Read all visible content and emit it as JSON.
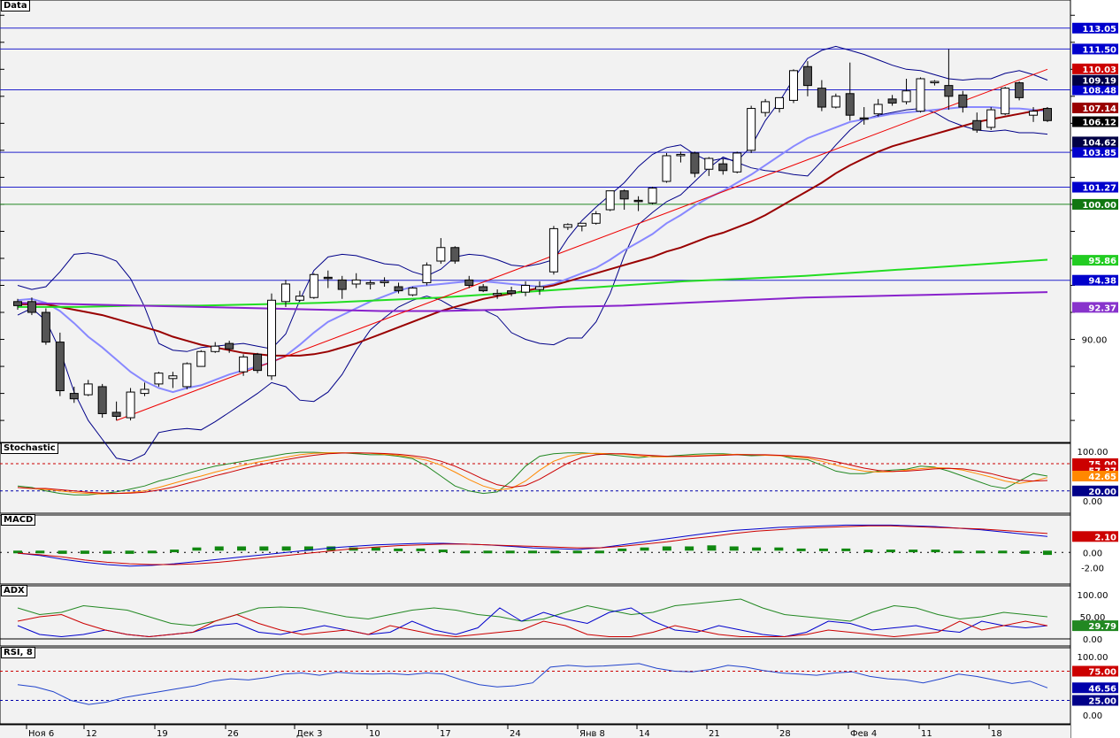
{
  "panels": {
    "price": {
      "title": "Data",
      "tick_labels": [
        "90.00"
      ],
      "hlines": [
        {
          "value": 113.05,
          "label": "113.05",
          "color": "#2222cc"
        },
        {
          "value": 111.5,
          "label": "111.50",
          "color": "#2222cc"
        },
        {
          "value": 108.48,
          "label": "108.48",
          "color": "#2222cc"
        },
        {
          "value": 103.85,
          "label": "103.85",
          "color": "#2222cc"
        },
        {
          "value": 101.27,
          "label": "101.27",
          "color": "#2222cc"
        },
        {
          "value": 100.0,
          "label": "100.00",
          "color": "#228822"
        },
        {
          "value": 94.38,
          "label": "94.38",
          "color": "#2222cc"
        }
      ],
      "markers": [
        {
          "value": 110.03,
          "label": "110.03",
          "bg": "#cc0000"
        },
        {
          "value": 109.19,
          "label": "109.19",
          "bg": "#000044"
        },
        {
          "value": 107.14,
          "label": "107.14",
          "bg": "#990000"
        },
        {
          "value": 106.12,
          "label": "106.12",
          "bg": "#000000"
        },
        {
          "value": 104.62,
          "label": "104.62",
          "bg": "#000044"
        },
        {
          "value": 95.86,
          "label": "95.86",
          "bg": "#22cc22"
        },
        {
          "value": 92.37,
          "label": "92.37",
          "bg": "#8833cc"
        }
      ]
    },
    "stochastic": {
      "title": "Stochastic",
      "tick_labels": [
        "100.00",
        "0.00"
      ],
      "markers": [
        {
          "label": "75.00",
          "bg": "#cc0000"
        },
        {
          "label": "57.37",
          "bg": "#cc0000"
        },
        {
          "label": "42.65",
          "bg": "#ff8800"
        },
        {
          "label": "20.00",
          "bg": "#000088"
        }
      ]
    },
    "macd": {
      "title": "MACD",
      "tick_labels": [
        "0.00",
        "-2.00"
      ],
      "markers": [
        {
          "label": "2.10",
          "bg": "#cc0000"
        }
      ]
    },
    "adx": {
      "title": "ADX",
      "tick_labels": [
        "100.00",
        "50.00",
        "0.00"
      ],
      "markers": [
        {
          "label": "29.79",
          "bg": "#228822"
        }
      ]
    },
    "rsi": {
      "title": "RSI, 8",
      "tick_labels": [
        "100.00",
        "0.00"
      ],
      "markers": [
        {
          "label": "75.00",
          "bg": "#cc0000"
        },
        {
          "label": "46.56",
          "bg": "#0000aa"
        },
        {
          "label": "25.00",
          "bg": "#000088"
        }
      ]
    }
  },
  "x_labels": [
    "Ноя 6",
    "12",
    "19",
    "26",
    "Дек 3",
    "10",
    "17",
    "24",
    "Янв 8",
    "14",
    "21",
    "28",
    "Фев 4",
    "11",
    "18"
  ],
  "chart_data": {
    "type": "candlestick",
    "title": "",
    "ylim": [
      82.5,
      115.0
    ],
    "ohlc": [
      [
        92.8,
        93.0,
        92.2,
        92.5
      ],
      [
        92.8,
        93.1,
        91.8,
        92.0
      ],
      [
        92.0,
        92.3,
        89.6,
        89.8
      ],
      [
        89.8,
        90.5,
        85.8,
        86.2
      ],
      [
        86.0,
        86.5,
        85.3,
        85.6
      ],
      [
        85.9,
        87.0,
        85.8,
        86.7
      ],
      [
        86.5,
        86.7,
        84.2,
        84.5
      ],
      [
        84.6,
        85.4,
        84.0,
        84.3
      ],
      [
        84.2,
        86.4,
        84.0,
        86.1
      ],
      [
        86.0,
        86.8,
        85.8,
        86.3
      ],
      [
        86.7,
        87.6,
        86.5,
        87.5
      ],
      [
        87.1,
        87.6,
        86.4,
        87.3
      ],
      [
        86.5,
        88.3,
        86.3,
        88.2
      ],
      [
        88.0,
        89.2,
        88.0,
        89.1
      ],
      [
        89.1,
        89.8,
        89.0,
        89.5
      ],
      [
        89.7,
        89.9,
        89.0,
        89.3
      ],
      [
        87.6,
        88.9,
        87.3,
        88.7
      ],
      [
        88.9,
        89.0,
        87.5,
        87.7
      ],
      [
        87.3,
        93.4,
        87.0,
        92.9
      ],
      [
        92.8,
        94.4,
        92.4,
        94.1
      ],
      [
        92.9,
        93.6,
        92.8,
        93.2
      ],
      [
        93.1,
        94.9,
        93.0,
        94.8
      ],
      [
        94.6,
        95.1,
        93.8,
        94.5
      ],
      [
        94.4,
        94.7,
        93.0,
        93.7
      ],
      [
        94.1,
        94.9,
        93.8,
        94.4
      ],
      [
        94.1,
        94.4,
        93.7,
        94.2
      ],
      [
        94.2,
        94.6,
        93.9,
        94.3
      ],
      [
        93.9,
        94.2,
        93.4,
        93.6
      ],
      [
        93.3,
        93.9,
        93.2,
        93.8
      ],
      [
        94.2,
        95.7,
        94.0,
        95.5
      ],
      [
        95.8,
        97.5,
        95.6,
        96.8
      ],
      [
        96.8,
        96.9,
        95.6,
        95.8
      ],
      [
        94.4,
        94.7,
        93.8,
        94.0
      ],
      [
        93.9,
        94.1,
        93.5,
        93.6
      ],
      [
        93.3,
        93.7,
        93.0,
        93.4
      ],
      [
        93.6,
        93.9,
        93.2,
        93.4
      ],
      [
        93.5,
        94.3,
        93.2,
        94.0
      ],
      [
        93.7,
        94.3,
        93.3,
        93.9
      ],
      [
        95.0,
        98.4,
        94.8,
        98.2
      ],
      [
        98.3,
        98.6,
        98.1,
        98.5
      ],
      [
        98.4,
        98.6,
        98.0,
        98.6
      ],
      [
        98.6,
        99.5,
        98.5,
        99.3
      ],
      [
        99.6,
        101.0,
        99.5,
        101.0
      ],
      [
        101.0,
        101.1,
        99.6,
        100.4
      ],
      [
        100.3,
        100.6,
        99.5,
        100.2
      ],
      [
        100.1,
        101.3,
        100.0,
        101.2
      ],
      [
        101.7,
        103.8,
        101.6,
        103.6
      ],
      [
        103.6,
        103.9,
        103.1,
        103.7
      ],
      [
        103.8,
        103.9,
        102.0,
        102.3
      ],
      [
        102.6,
        103.5,
        102.1,
        103.4
      ],
      [
        103.0,
        103.4,
        102.2,
        102.5
      ],
      [
        102.4,
        103.9,
        102.3,
        103.8
      ],
      [
        104.0,
        107.3,
        103.8,
        107.1
      ],
      [
        106.8,
        107.8,
        106.5,
        107.6
      ],
      [
        107.1,
        107.9,
        106.8,
        107.9
      ],
      [
        107.7,
        110.0,
        107.5,
        109.9
      ],
      [
        110.2,
        110.6,
        108.0,
        108.8
      ],
      [
        108.6,
        109.2,
        106.9,
        107.2
      ],
      [
        107.2,
        108.2,
        107.1,
        108.0
      ],
      [
        108.2,
        110.5,
        106.2,
        106.6
      ],
      [
        106.4,
        107.2,
        105.9,
        106.3
      ],
      [
        106.7,
        107.8,
        106.5,
        107.4
      ],
      [
        107.8,
        108.1,
        107.3,
        107.5
      ],
      [
        107.6,
        109.3,
        107.4,
        108.4
      ],
      [
        106.9,
        109.4,
        106.8,
        109.3
      ],
      [
        109.0,
        109.2,
        108.8,
        109.1
      ],
      [
        108.8,
        111.5,
        107.0,
        108.0
      ],
      [
        108.1,
        108.4,
        106.8,
        107.2
      ],
      [
        106.2,
        106.8,
        105.3,
        105.5
      ],
      [
        105.7,
        107.2,
        105.5,
        107.0
      ],
      [
        106.7,
        108.7,
        106.6,
        108.6
      ],
      [
        109.0,
        109.1,
        107.7,
        107.9
      ],
      [
        106.6,
        107.2,
        106.1,
        106.9
      ],
      [
        107.1,
        107.2,
        106.1,
        106.2
      ]
    ],
    "ma_short": [
      92.9,
      93.0,
      92.7,
      92.1,
      91.2,
      90.2,
      89.4,
      88.5,
      87.6,
      86.9,
      86.4,
      86.1,
      86.4,
      86.6,
      87.0,
      87.4,
      87.7,
      88.0,
      88.3,
      88.8,
      89.6,
      90.5,
      91.3,
      91.8,
      92.3,
      92.8,
      93.2,
      93.6,
      93.9,
      94.0,
      94.1,
      94.2,
      94.3,
      94.3,
      94.2,
      94.1,
      94.0,
      93.9,
      94.1,
      94.5,
      94.9,
      95.3,
      95.9,
      96.6,
      97.2,
      97.8,
      98.6,
      99.2,
      99.9,
      100.5,
      101.0,
      101.6,
      102.2,
      102.9,
      103.6,
      104.3,
      104.9,
      105.3,
      105.7,
      106.1,
      106.3,
      106.5,
      106.7,
      106.8,
      106.9,
      107.0,
      107.1,
      107.2,
      107.2,
      107.2,
      107.1,
      107.1,
      107.0,
      106.9
    ],
    "ma_long": [
      92.6,
      92.6,
      92.6,
      92.4,
      92.2,
      92.0,
      91.8,
      91.5,
      91.2,
      90.9,
      90.6,
      90.2,
      89.9,
      89.6,
      89.4,
      89.2,
      89.0,
      88.9,
      88.8,
      88.8,
      88.8,
      88.9,
      89.1,
      89.4,
      89.7,
      90.1,
      90.5,
      90.9,
      91.3,
      91.7,
      92.1,
      92.4,
      92.7,
      93.0,
      93.2,
      93.4,
      93.6,
      93.8,
      94.0,
      94.3,
      94.6,
      94.9,
      95.2,
      95.5,
      95.8,
      96.1,
      96.5,
      96.8,
      97.2,
      97.6,
      97.9,
      98.3,
      98.7,
      99.2,
      99.8,
      100.4,
      101.0,
      101.6,
      102.3,
      102.9,
      103.4,
      103.9,
      104.3,
      104.6,
      104.9,
      105.2,
      105.5,
      105.8,
      106.1,
      106.3,
      106.5,
      106.7,
      106.9,
      107.1
    ],
    "bb_upper": [
      94.0,
      93.7,
      93.9,
      95.0,
      96.3,
      96.4,
      96.2,
      95.8,
      94.5,
      92.4,
      89.7,
      89.2,
      89.1,
      89.4,
      89.5,
      89.6,
      89.7,
      89.5,
      89.3,
      90.4,
      92.9,
      95.1,
      96.1,
      96.3,
      96.2,
      95.9,
      95.6,
      95.5,
      95.0,
      94.7,
      95.2,
      96.1,
      96.3,
      96.2,
      95.9,
      95.5,
      95.4,
      95.6,
      95.9,
      97.5,
      98.8,
      99.8,
      100.7,
      101.6,
      102.8,
      103.7,
      104.2,
      104.4,
      103.7,
      103.2,
      103.4,
      103.2,
      104.3,
      106.2,
      107.6,
      109.3,
      110.8,
      111.4,
      111.7,
      111.4,
      111.1,
      110.7,
      110.3,
      110.0,
      109.9,
      109.6,
      109.3,
      109.2,
      109.3,
      109.3,
      109.7,
      109.9,
      109.6,
      109.2
    ],
    "bb_lower": [
      91.8,
      92.3,
      91.4,
      89.2,
      86.1,
      84.0,
      82.6,
      81.2,
      81.0,
      81.5,
      83.1,
      83.3,
      83.4,
      83.3,
      83.9,
      84.6,
      85.3,
      86.0,
      86.8,
      86.5,
      85.5,
      85.4,
      86.1,
      87.4,
      89.2,
      90.7,
      91.6,
      92.4,
      92.9,
      93.2,
      92.9,
      92.3,
      92.2,
      92.2,
      91.7,
      90.5,
      90.0,
      89.7,
      89.6,
      90.1,
      90.1,
      91.3,
      93.4,
      96.2,
      98.5,
      99.4,
      100.2,
      100.7,
      101.7,
      102.7,
      103.5,
      103.1,
      102.7,
      102.5,
      102.4,
      102.2,
      102.1,
      103.2,
      104.4,
      105.5,
      106.3,
      106.6,
      106.8,
      107.0,
      107.1,
      106.8,
      106.2,
      105.8,
      105.5,
      105.4,
      105.5,
      105.3,
      105.3,
      105.2
    ],
    "ema_green": [
      92.4,
      92.4,
      92.5,
      92.5,
      92.6,
      92.7,
      92.9,
      93.1,
      93.4,
      93.7,
      94.0,
      94.3,
      94.5,
      94.7,
      95.0,
      95.3,
      95.6,
      95.9
    ],
    "ema_purple": [
      92.7,
      92.6,
      92.5,
      92.4,
      92.3,
      92.2,
      92.1,
      92.1,
      92.2,
      92.4,
      92.5,
      92.7,
      92.9,
      93.1,
      93.2,
      93.3,
      93.4,
      93.5
    ],
    "trendline": {
      "from": [
        7,
        84.0
      ],
      "to": [
        73,
        110.0
      ]
    },
    "stoch_k": [
      30,
      27,
      20,
      15,
      12,
      12,
      15,
      18,
      24,
      30,
      40,
      47,
      55,
      63,
      70,
      75,
      80,
      85,
      90,
      95,
      98,
      98,
      97,
      97,
      95,
      93,
      93,
      90,
      85,
      70,
      50,
      30,
      20,
      15,
      18,
      40,
      70,
      90,
      95,
      97,
      97,
      95,
      93,
      90,
      87,
      90,
      90,
      92,
      94,
      95,
      95,
      93,
      91,
      92,
      92,
      85,
      83,
      72,
      60,
      55,
      55,
      60,
      62,
      64,
      70,
      68,
      60,
      50,
      40,
      30,
      25,
      40,
      55,
      50
    ],
    "stoch_d": [
      27,
      25,
      23,
      20,
      17,
      15,
      14,
      15,
      17,
      20,
      27,
      35,
      43,
      50,
      58,
      65,
      72,
      78,
      83,
      88,
      93,
      96,
      97,
      97,
      97,
      96,
      94,
      92,
      88,
      82,
      72,
      58,
      43,
      30,
      22,
      25,
      40,
      62,
      80,
      90,
      95,
      96,
      95,
      94,
      91,
      89,
      89,
      90,
      91,
      92,
      93,
      94,
      93,
      92,
      91,
      89,
      86,
      80,
      72,
      65,
      60,
      58,
      59,
      62,
      65,
      67,
      66,
      62,
      55,
      48,
      40,
      35,
      40,
      47
    ],
    "macd_line": [
      -0.1,
      -0.4,
      -0.9,
      -1.3,
      -1.6,
      -1.8,
      -1.7,
      -1.5,
      -1.2,
      -0.9,
      -0.6,
      -0.3,
      0.0,
      0.3,
      0.6,
      0.8,
      1.0,
      1.1,
      1.2,
      1.2,
      1.1,
      1.0,
      0.8,
      0.6,
      0.5,
      0.4,
      0.6,
      1.0,
      1.4,
      1.8,
      2.2,
      2.6,
      2.9,
      3.1,
      3.3,
      3.4,
      3.5,
      3.6,
      3.6,
      3.6,
      3.5,
      3.4,
      3.2,
      3.0,
      2.7,
      2.4,
      2.1
    ],
    "macd_signal": [
      -0.1,
      -0.3,
      -0.6,
      -1.0,
      -1.3,
      -1.5,
      -1.6,
      -1.6,
      -1.5,
      -1.3,
      -1.0,
      -0.7,
      -0.4,
      -0.1,
      0.2,
      0.5,
      0.7,
      0.9,
      1.0,
      1.1,
      1.1,
      1.0,
      0.9,
      0.8,
      0.7,
      0.6,
      0.6,
      0.8,
      1.1,
      1.4,
      1.8,
      2.1,
      2.5,
      2.8,
      3.0,
      3.2,
      3.3,
      3.4,
      3.5,
      3.5,
      3.4,
      3.3,
      3.2,
      3.1,
      2.9,
      2.7,
      2.5
    ],
    "adx_green": [
      70,
      55,
      60,
      75,
      70,
      65,
      50,
      35,
      30,
      40,
      55,
      70,
      72,
      70,
      60,
      50,
      45,
      55,
      65,
      70,
      65,
      55,
      50,
      40,
      45,
      60,
      75,
      65,
      55,
      60,
      75,
      80,
      85,
      90,
      70,
      55,
      50,
      45,
      40,
      60,
      75,
      70,
      55,
      45,
      50,
      60,
      55,
      50
    ],
    "adx_blue": [
      30,
      10,
      5,
      10,
      20,
      10,
      5,
      10,
      15,
      30,
      35,
      15,
      10,
      20,
      30,
      20,
      10,
      15,
      40,
      20,
      10,
      25,
      70,
      40,
      60,
      45,
      35,
      60,
      70,
      40,
      20,
      15,
      30,
      20,
      10,
      5,
      15,
      40,
      35,
      20,
      25,
      30,
      20,
      15,
      40,
      30,
      25,
      30
    ],
    "adx_red": [
      40,
      50,
      55,
      35,
      20,
      10,
      5,
      10,
      15,
      40,
      55,
      35,
      20,
      10,
      15,
      20,
      10,
      30,
      20,
      10,
      5,
      10,
      15,
      20,
      40,
      30,
      10,
      5,
      5,
      15,
      30,
      20,
      10,
      5,
      5,
      5,
      10,
      20,
      15,
      10,
      5,
      10,
      15,
      40,
      20,
      30,
      40,
      29.79
    ],
    "rsi": [
      52,
      48,
      40,
      25,
      18,
      22,
      30,
      35,
      40,
      45,
      50,
      58,
      62,
      60,
      64,
      70,
      72,
      68,
      73,
      71,
      70,
      71,
      69,
      72,
      70,
      60,
      52,
      48,
      50,
      55,
      82,
      85,
      83,
      84,
      86,
      88,
      80,
      75,
      74,
      78,
      85,
      82,
      76,
      72,
      70,
      68,
      72,
      74,
      66,
      62,
      60,
      55,
      62,
      70,
      66,
      60,
      54,
      58,
      46.56
    ]
  }
}
